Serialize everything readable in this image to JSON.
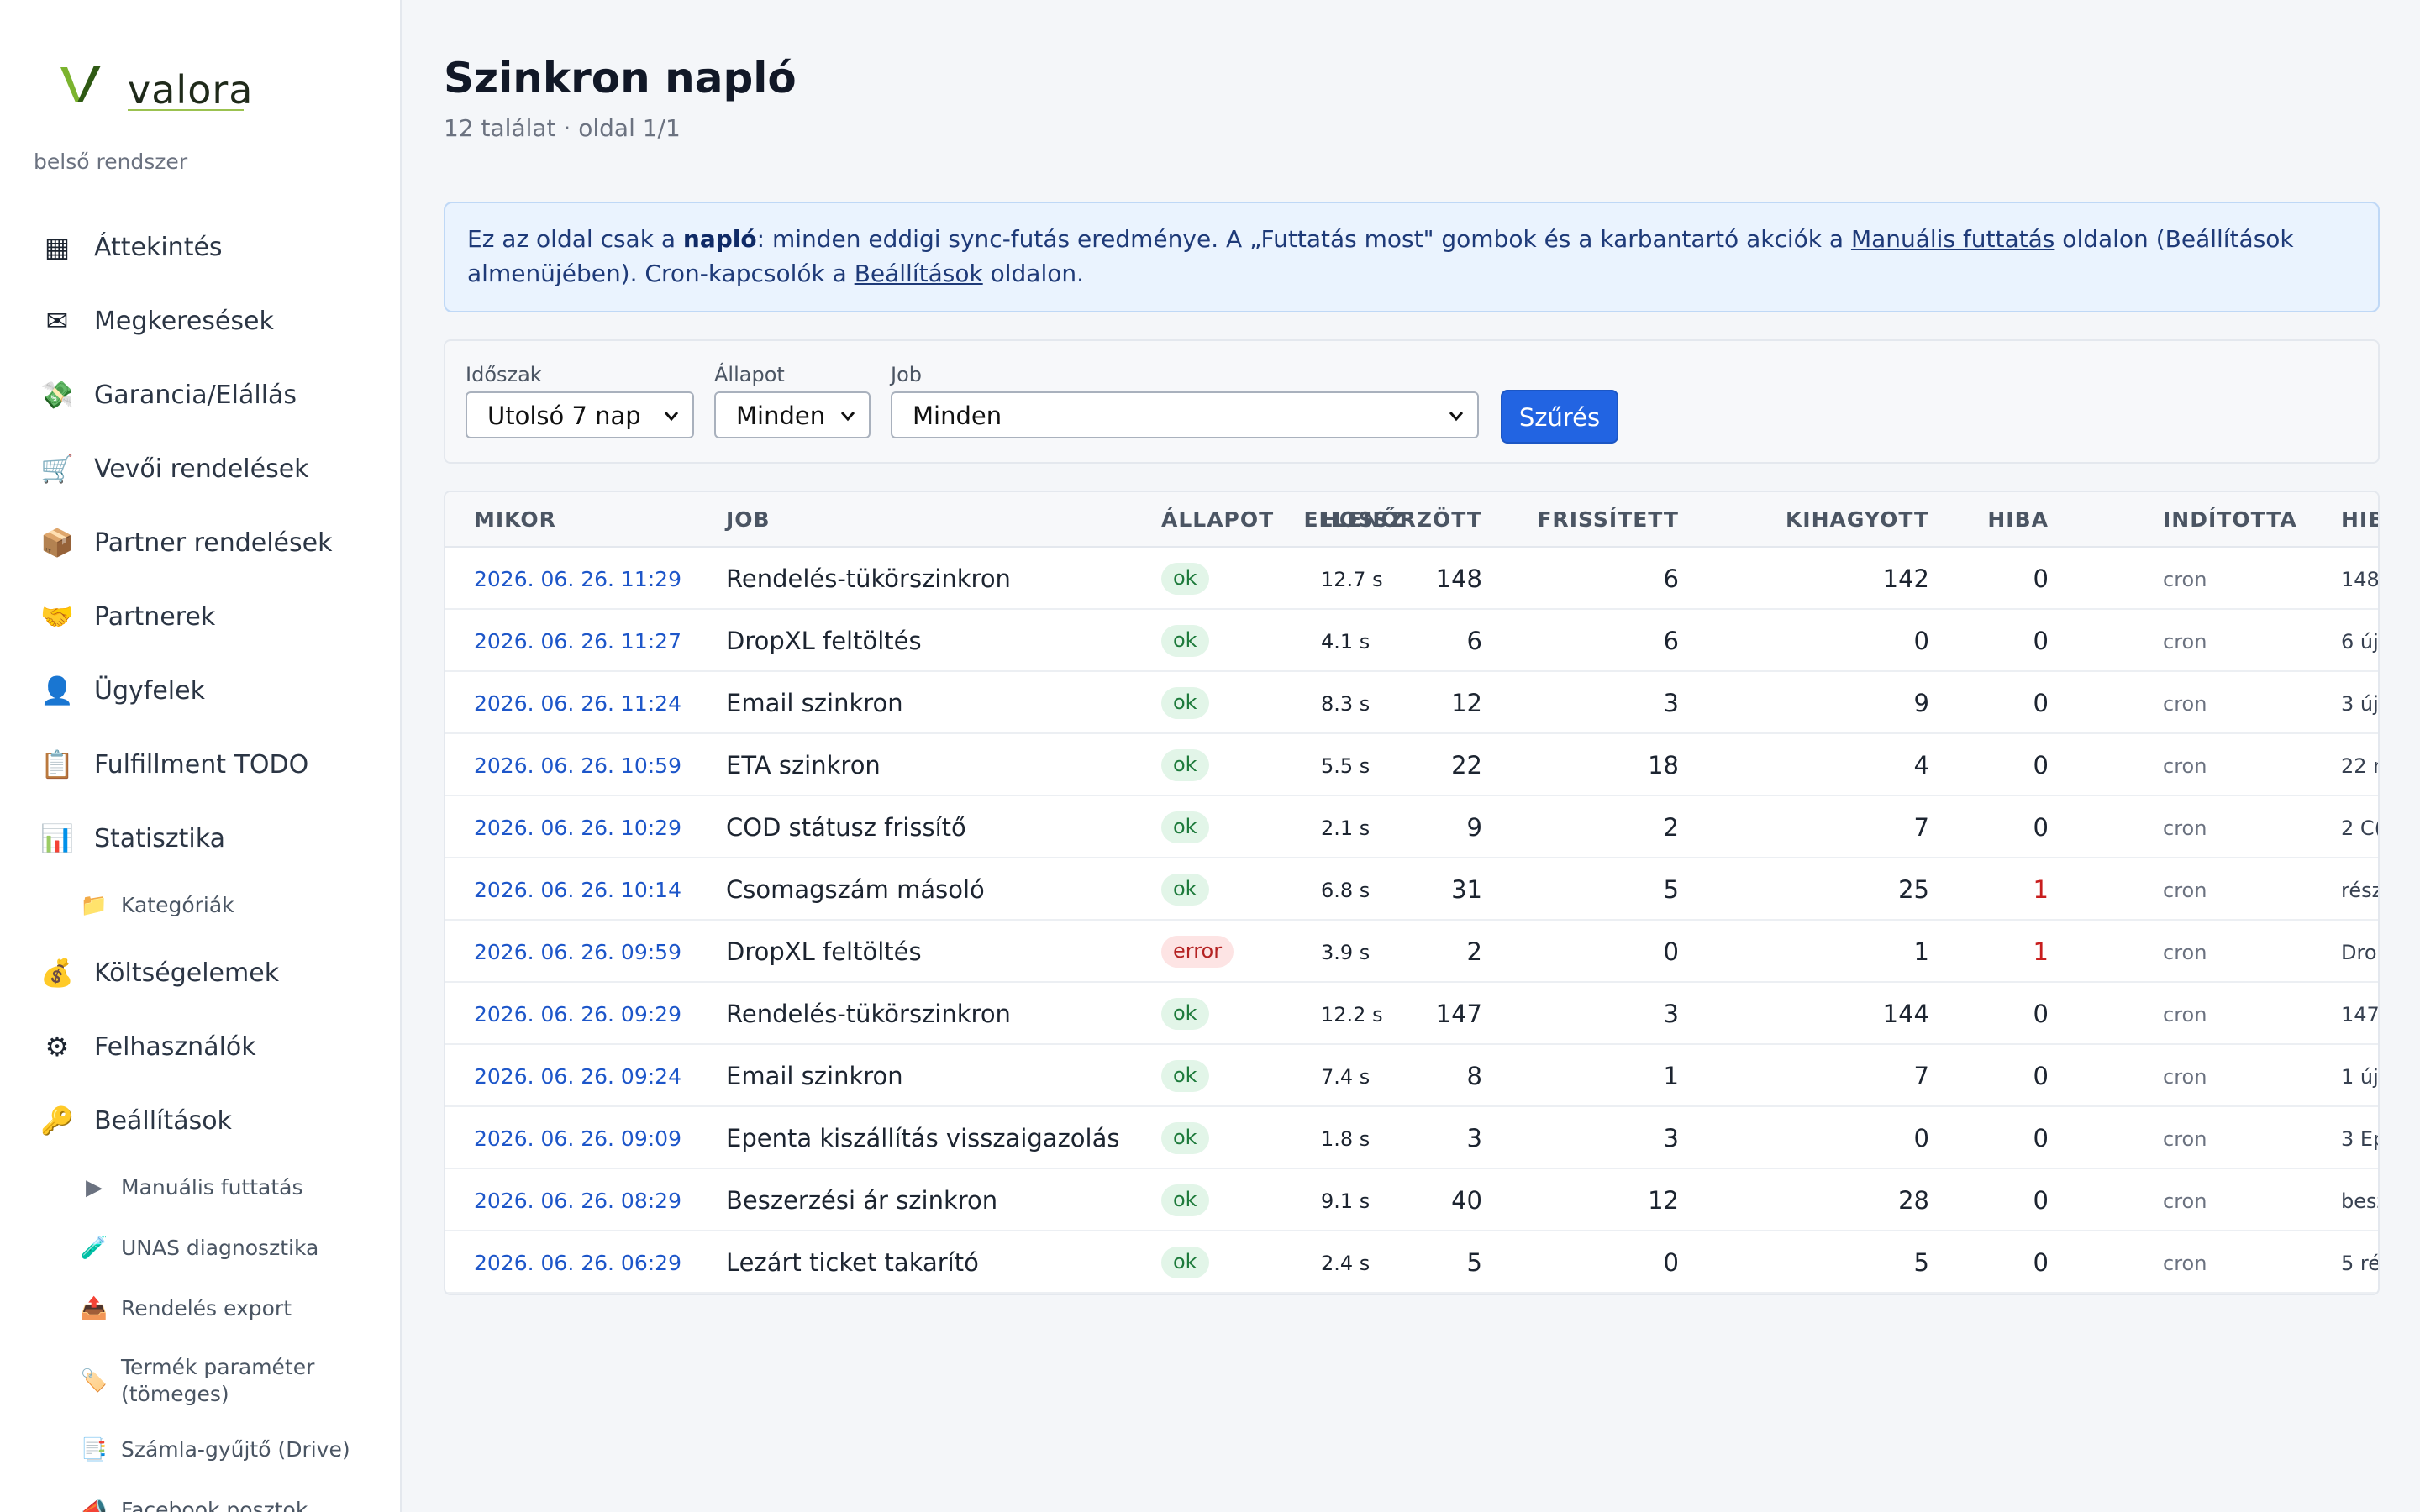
{
  "sidebar": {
    "brand": "valora",
    "subtitle": "belső rendszer",
    "items": [
      {
        "icon": "▦",
        "label": "Áttekintés"
      },
      {
        "icon": "✉",
        "label": "Megkeresések"
      },
      {
        "icon": "💸",
        "label": "Garancia/Elállás"
      },
      {
        "icon": "🛒",
        "label": "Vevői rendelések"
      },
      {
        "icon": "📦",
        "label": "Partner rendelések"
      },
      {
        "icon": "🤝",
        "label": "Partnerek"
      },
      {
        "icon": "👤",
        "label": "Ügyfelek"
      },
      {
        "icon": "📋",
        "label": "Fulfillment TODO"
      },
      {
        "icon": "📊",
        "label": "Statisztika"
      },
      {
        "icon": "📁",
        "label": "Kategóriák"
      },
      {
        "icon": "💰",
        "label": "Költségelemek"
      },
      {
        "icon": "⚙",
        "label": "Felhasználók"
      },
      {
        "icon": "🔑",
        "label": "Beállítások"
      },
      {
        "icon": "▶",
        "label": "Manuális futtatás"
      },
      {
        "icon": "🧪",
        "label": "UNAS diagnosztika"
      },
      {
        "icon": "📤",
        "label": "Rendelés export"
      },
      {
        "icon": "🏷️",
        "label": "Termék paraméter (tömeges)"
      },
      {
        "icon": "📑",
        "label": "Számla-gyűjtő (Drive)"
      },
      {
        "icon": "📣",
        "label": "Facebook posztok"
      }
    ]
  },
  "header": {
    "title": "Szinkron napló",
    "subtitle": "12 találat · oldal 1/1"
  },
  "info": {
    "part1": "Ez az oldal csak a ",
    "bold": "napló",
    "part2": ": minden eddigi sync-futás eredménye. A „Futtatás most\" gombok és a karbantartó akciók a ",
    "link1": "Manuális futtatás",
    "part3": " oldalon (Beállítások almenüjében). Cron-kapcsolók a ",
    "link2": "Beállítások",
    "part4": " oldalon."
  },
  "filters": {
    "period_label": "Időszak",
    "period_value": "Utolsó 7 nap",
    "state_label": "Állapot",
    "state_value": "Minden",
    "job_label": "Job",
    "job_value": "Minden",
    "submit": "Szűrés"
  },
  "table": {
    "headers": {
      "when": "MIKOR",
      "job": "JOB",
      "state": "ÁLLAPOT",
      "length": "HOSSZ",
      "checked": "ELLENŐRZÖTT",
      "updated": "FRISSÍTETT",
      "skipped": "KIHAGYOTT",
      "errors": "HIBA",
      "started_by": "INDÍTOTTA",
      "note": "HIB"
    },
    "rows": [
      {
        "when": "2026. 06. 26. 11:29",
        "job": "Rendelés-tükörszinkron",
        "state": "ok",
        "length": "12.7 s",
        "checked": "148",
        "updated": "6",
        "skipped": "142",
        "errors": "0",
        "by": "cron",
        "note": "148"
      },
      {
        "when": "2026. 06. 26. 11:27",
        "job": "DropXL feltöltés",
        "state": "ok",
        "length": "4.1 s",
        "checked": "6",
        "updated": "6",
        "skipped": "0",
        "errors": "0",
        "by": "cron",
        "note": "6 új"
      },
      {
        "when": "2026. 06. 26. 11:24",
        "job": "Email szinkron",
        "state": "ok",
        "length": "8.3 s",
        "checked": "12",
        "updated": "3",
        "skipped": "9",
        "errors": "0",
        "by": "cron",
        "note": "3 új"
      },
      {
        "when": "2026. 06. 26. 10:59",
        "job": "ETA szinkron",
        "state": "ok",
        "length": "5.5 s",
        "checked": "22",
        "updated": "18",
        "skipped": "4",
        "errors": "0",
        "by": "cron",
        "note": "22 r"
      },
      {
        "when": "2026. 06. 26. 10:29",
        "job": "COD státusz frissítő",
        "state": "ok",
        "length": "2.1 s",
        "checked": "9",
        "updated": "2",
        "skipped": "7",
        "errors": "0",
        "by": "cron",
        "note": "2 C("
      },
      {
        "when": "2026. 06. 26. 10:14",
        "job": "Csomagszám másoló",
        "state": "ok",
        "length": "6.8 s",
        "checked": "31",
        "updated": "5",
        "skipped": "25",
        "errors": "1",
        "by": "cron",
        "note": "rész"
      },
      {
        "when": "2026. 06. 26. 09:59",
        "job": "DropXL feltöltés",
        "state": "error",
        "length": "3.9 s",
        "checked": "2",
        "updated": "0",
        "skipped": "1",
        "errors": "1",
        "by": "cron",
        "note": "Dro"
      },
      {
        "when": "2026. 06. 26. 09:29",
        "job": "Rendelés-tükörszinkron",
        "state": "ok",
        "length": "12.2 s",
        "checked": "147",
        "updated": "3",
        "skipped": "144",
        "errors": "0",
        "by": "cron",
        "note": "147"
      },
      {
        "when": "2026. 06. 26. 09:24",
        "job": "Email szinkron",
        "state": "ok",
        "length": "7.4 s",
        "checked": "8",
        "updated": "1",
        "skipped": "7",
        "errors": "0",
        "by": "cron",
        "note": "1 új"
      },
      {
        "when": "2026. 06. 26. 09:09",
        "job": "Epenta kiszállítás visszaigazolás",
        "state": "ok",
        "length": "1.8 s",
        "checked": "3",
        "updated": "3",
        "skipped": "0",
        "errors": "0",
        "by": "cron",
        "note": "3 Ep"
      },
      {
        "when": "2026. 06. 26. 08:29",
        "job": "Beszerzési ár szinkron",
        "state": "ok",
        "length": "9.1 s",
        "checked": "40",
        "updated": "12",
        "skipped": "28",
        "errors": "0",
        "by": "cron",
        "note": "besz"
      },
      {
        "when": "2026. 06. 26. 06:29",
        "job": "Lezárt ticket takarító",
        "state": "ok",
        "length": "2.4 s",
        "checked": "5",
        "updated": "0",
        "skipped": "5",
        "errors": "0",
        "by": "cron",
        "note": "5 ré"
      }
    ]
  }
}
